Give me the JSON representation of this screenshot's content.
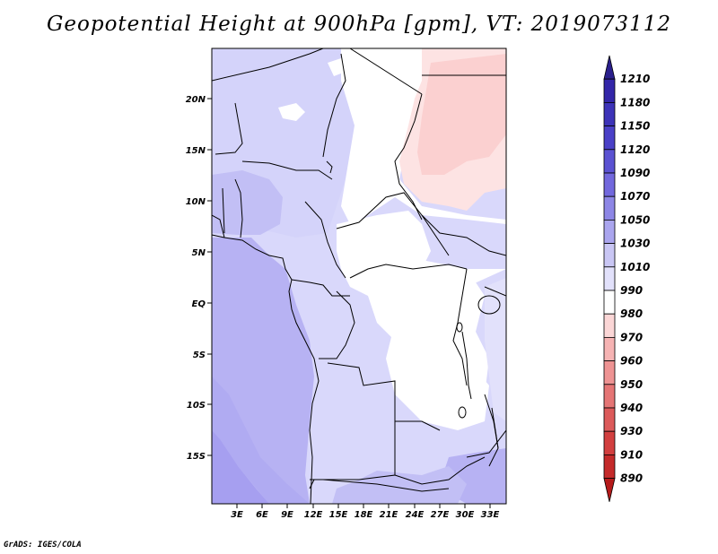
{
  "title": "Geopotential Height at 900hPa [gpm], VT: 2019073112",
  "credit": "GrADS: IGES/COLA",
  "map": {
    "lat_labels": [
      "20N",
      "15N",
      "10N",
      "5N",
      "EQ",
      "5S",
      "10S",
      "15S"
    ],
    "lon_labels": [
      "3E",
      "6E",
      "9E",
      "12E",
      "15E",
      "18E",
      "21E",
      "24E",
      "27E",
      "30E",
      "33E"
    ]
  },
  "colorbar": {
    "levels": [
      "1210",
      "1180",
      "1150",
      "1120",
      "1090",
      "1070",
      "1050",
      "1030",
      "1010",
      "990",
      "980",
      "970",
      "960",
      "950",
      "940",
      "930",
      "910",
      "890"
    ],
    "colors": [
      "#2a1f8c",
      "#3326a8",
      "#3d33b8",
      "#4a40c7",
      "#5b52d2",
      "#7268dd",
      "#8d86e6",
      "#aaa5ee",
      "#c9c6f4",
      "#e2e1fb",
      "#ffffff",
      "#fbd6d6",
      "#f6b3b3",
      "#ee9393",
      "#e57575",
      "#dc5a5a",
      "#d23f3f",
      "#c42a2a",
      "#b51a1a"
    ]
  },
  "field_colors": {
    "very_low": "#c7c4f6",
    "low": "#d9d8fb",
    "mid": "#b7b2f3",
    "high": "#a69ff0",
    "neutral": "#ffffff",
    "pink": "#fbd0d0",
    "pink_light": "#fde3e3"
  }
}
